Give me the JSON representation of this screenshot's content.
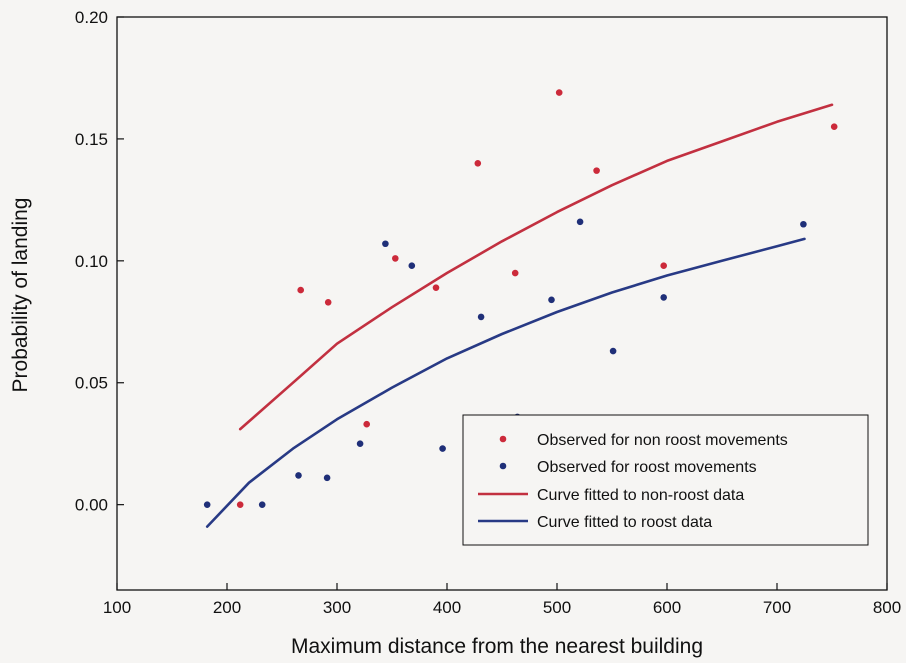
{
  "chart_data": {
    "type": "scatter",
    "xlabel": "Maximum distance from the nearest building",
    "ylabel": "Probability of landing",
    "xlim": [
      100,
      800
    ],
    "ylim": [
      -0.035,
      0.2
    ],
    "xticks": [
      100,
      200,
      300,
      400,
      500,
      600,
      700,
      800
    ],
    "yticks": [
      0.0,
      0.05,
      0.1,
      0.15,
      0.2
    ],
    "ytick_labels": [
      "0.00",
      "0.05",
      "0.10",
      "0.15",
      "0.20"
    ],
    "grid": false,
    "legend_position": "bottom-right",
    "series": [
      {
        "name": "Observed for non roost movements",
        "kind": "points",
        "color": "#cc2a3a",
        "points": [
          [
            212,
            0.0
          ],
          [
            267,
            0.088
          ],
          [
            292,
            0.083
          ],
          [
            327,
            0.033
          ],
          [
            353,
            0.101
          ],
          [
            390,
            0.089
          ],
          [
            428,
            0.14
          ],
          [
            462,
            0.095
          ],
          [
            502,
            0.169
          ],
          [
            536,
            0.137
          ],
          [
            597,
            0.098
          ],
          [
            752,
            0.155
          ]
        ]
      },
      {
        "name": "Observed for roost movements",
        "kind": "points",
        "color": "#1f2f78",
        "points": [
          [
            182,
            0.0
          ],
          [
            232,
            0.0
          ],
          [
            265,
            0.012
          ],
          [
            291,
            0.011
          ],
          [
            321,
            0.025
          ],
          [
            344,
            0.107
          ],
          [
            368,
            0.098
          ],
          [
            396,
            0.023
          ],
          [
            431,
            0.077
          ],
          [
            464,
            0.036
          ],
          [
            495,
            0.084
          ],
          [
            521,
            0.116
          ],
          [
            551,
            0.063
          ],
          [
            597,
            0.085
          ],
          [
            724,
            0.115
          ]
        ]
      },
      {
        "name": "Curve fitted to non-roost data",
        "kind": "line",
        "color": "#c23040",
        "points": [
          [
            212,
            0.031
          ],
          [
            260,
            0.05
          ],
          [
            300,
            0.066
          ],
          [
            350,
            0.081
          ],
          [
            400,
            0.095
          ],
          [
            450,
            0.108
          ],
          [
            500,
            0.12
          ],
          [
            550,
            0.131
          ],
          [
            600,
            0.141
          ],
          [
            650,
            0.149
          ],
          [
            700,
            0.157
          ],
          [
            750,
            0.164
          ]
        ]
      },
      {
        "name": "Curve fitted to roost data",
        "kind": "line",
        "color": "#283a85",
        "points": [
          [
            182,
            -0.009
          ],
          [
            220,
            0.009
          ],
          [
            260,
            0.023
          ],
          [
            300,
            0.035
          ],
          [
            350,
            0.048
          ],
          [
            400,
            0.06
          ],
          [
            450,
            0.07
          ],
          [
            500,
            0.079
          ],
          [
            550,
            0.087
          ],
          [
            600,
            0.094
          ],
          [
            650,
            0.1
          ],
          [
            700,
            0.106
          ],
          [
            725,
            0.109
          ]
        ]
      }
    ]
  }
}
